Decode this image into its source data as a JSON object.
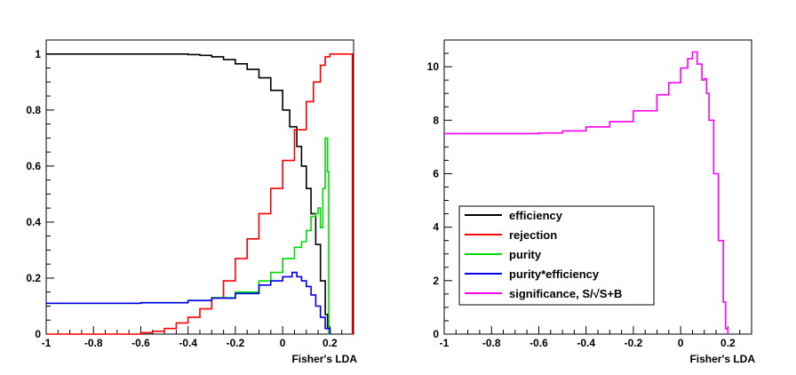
{
  "chart_data": [
    {
      "type": "line",
      "xlabel": "Fisher's LDA",
      "ylabel": "",
      "xlim": [
        -1,
        0.3
      ],
      "ylim": [
        0,
        1.05
      ],
      "xticks": [
        "-1",
        "-0.8",
        "-0.6",
        "-0.4",
        "-0.2",
        "0",
        "0.2"
      ],
      "yticks": [
        "0",
        "0.2",
        "0.4",
        "0.6",
        "0.8",
        "1"
      ],
      "grid": false,
      "series": [
        {
          "name": "efficiency",
          "color": "#000000",
          "x": [
            -1.0,
            -0.8,
            -0.6,
            -0.4,
            -0.35,
            -0.3,
            -0.25,
            -0.2,
            -0.15,
            -0.1,
            -0.05,
            0.0,
            0.03,
            0.06,
            0.08,
            0.1,
            0.12,
            0.14,
            0.16,
            0.18,
            0.19,
            0.2
          ],
          "y": [
            1.0,
            1.0,
            1.0,
            0.998,
            0.995,
            0.99,
            0.98,
            0.965,
            0.945,
            0.915,
            0.87,
            0.8,
            0.74,
            0.67,
            0.6,
            0.52,
            0.43,
            0.32,
            0.19,
            0.07,
            0.02,
            0.0
          ]
        },
        {
          "name": "rejection",
          "color": "#ff0000",
          "x": [
            -1.0,
            -0.8,
            -0.6,
            -0.55,
            -0.5,
            -0.45,
            -0.4,
            -0.35,
            -0.3,
            -0.25,
            -0.2,
            -0.15,
            -0.1,
            -0.05,
            0.0,
            0.05,
            0.1,
            0.13,
            0.16,
            0.18,
            0.2,
            0.25,
            0.29,
            0.295,
            0.3
          ],
          "y": [
            0.0,
            0.0,
            0.005,
            0.01,
            0.02,
            0.04,
            0.06,
            0.09,
            0.13,
            0.19,
            0.27,
            0.34,
            0.43,
            0.52,
            0.62,
            0.73,
            0.83,
            0.9,
            0.96,
            0.99,
            1.0,
            1.0,
            1.0,
            0.0,
            0.0
          ]
        },
        {
          "name": "purity",
          "color": "#00dd00",
          "x": [
            -1.0,
            -0.8,
            -0.6,
            -0.4,
            -0.3,
            -0.2,
            -0.1,
            -0.05,
            0.0,
            0.05,
            0.08,
            0.1,
            0.12,
            0.14,
            0.15,
            0.16,
            0.17,
            0.18,
            0.19,
            0.195,
            0.2
          ],
          "y": [
            0.11,
            0.11,
            0.112,
            0.12,
            0.13,
            0.15,
            0.19,
            0.22,
            0.27,
            0.31,
            0.33,
            0.37,
            0.42,
            0.43,
            0.45,
            0.38,
            0.52,
            0.7,
            0.58,
            0.0,
            0.0
          ]
        },
        {
          "name": "purity*efficiency",
          "color": "#0000ee",
          "x": [
            -1.0,
            -0.8,
            -0.6,
            -0.4,
            -0.3,
            -0.2,
            -0.1,
            -0.05,
            0.0,
            0.04,
            0.06,
            0.08,
            0.1,
            0.12,
            0.14,
            0.16,
            0.18,
            0.2
          ],
          "y": [
            0.11,
            0.11,
            0.112,
            0.12,
            0.128,
            0.145,
            0.175,
            0.19,
            0.205,
            0.22,
            0.205,
            0.19,
            0.17,
            0.14,
            0.1,
            0.06,
            0.02,
            0.0
          ]
        }
      ]
    },
    {
      "type": "line",
      "xlabel": "Fisher's LDA",
      "ylabel": "",
      "xlim": [
        -1,
        0.3
      ],
      "ylim": [
        0,
        11
      ],
      "xticks": [
        "-1",
        "-0.8",
        "-0.6",
        "-0.4",
        "-0.2",
        "0",
        "0.2"
      ],
      "yticks": [
        "0",
        "2",
        "4",
        "6",
        "8",
        "10"
      ],
      "grid": false,
      "series": [
        {
          "name": "significance, S/√S+B",
          "color": "#ff00ff",
          "x": [
            -1.0,
            -0.8,
            -0.6,
            -0.5,
            -0.4,
            -0.3,
            -0.2,
            -0.1,
            -0.05,
            0.0,
            0.03,
            0.05,
            0.07,
            0.09,
            0.1,
            0.11,
            0.12,
            0.14,
            0.16,
            0.18,
            0.19,
            0.2
          ],
          "y": [
            7.5,
            7.5,
            7.52,
            7.6,
            7.75,
            7.95,
            8.35,
            8.95,
            9.4,
            9.95,
            10.3,
            10.55,
            10.1,
            9.5,
            9.55,
            9.0,
            8.0,
            6.0,
            3.5,
            1.2,
            0.2,
            0.0
          ]
        }
      ]
    }
  ],
  "legend": {
    "placement": "bottom-left of right panel",
    "entries": [
      {
        "label": "efficiency",
        "color": "#000000"
      },
      {
        "label": "rejection",
        "color": "#ff0000"
      },
      {
        "label": "purity",
        "color": "#00dd00"
      },
      {
        "label": "purity*efficiency",
        "color": "#0000ee"
      },
      {
        "label": "significance, S/√S+B",
        "color": "#ff00ff"
      }
    ]
  }
}
